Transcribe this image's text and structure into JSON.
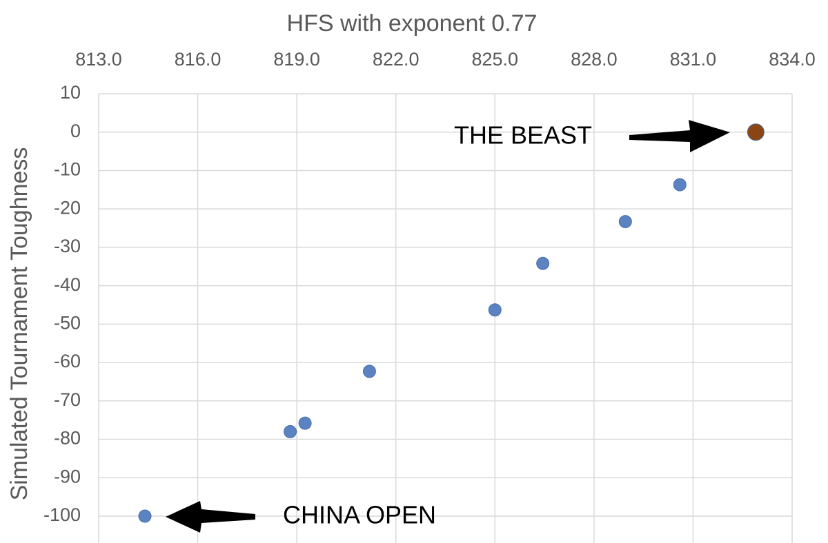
{
  "chart_data": {
    "type": "scatter",
    "x_label": "HFS with exponent 0.77",
    "y_label": "Simulated Tournament Toughness",
    "x": [
      814.4,
      818.8,
      819.25,
      821.2,
      825.0,
      826.45,
      828.95,
      830.6,
      832.9
    ],
    "values": [
      -100,
      -78,
      -75.8,
      -62.3,
      -46.3,
      -34.2,
      -23.3,
      -13.7,
      0
    ],
    "point_colors": [
      "#5b82c1",
      "#5b82c1",
      "#5b82c1",
      "#5b82c1",
      "#5b82c1",
      "#5b82c1",
      "#5b82c1",
      "#5b82c1",
      "#8b4513"
    ],
    "point_sizes": [
      9,
      9,
      9,
      9,
      9,
      9,
      9,
      9,
      12
    ],
    "xlim": [
      813,
      834
    ],
    "xticks": [
      {
        "value": 813,
        "label": "813.0"
      },
      {
        "value": 816,
        "label": "816.0"
      },
      {
        "value": 819,
        "label": "819.0"
      },
      {
        "value": 822,
        "label": "822.0"
      },
      {
        "value": 825,
        "label": "825.0"
      },
      {
        "value": 828,
        "label": "828.0"
      },
      {
        "value": 831,
        "label": "831.0"
      },
      {
        "value": 834,
        "label": "834.0"
      }
    ],
    "x_axis_position": "top",
    "ylim": [
      -107,
      10
    ],
    "yticks": [
      10,
      0,
      -10,
      -20,
      -30,
      -40,
      -50,
      -60,
      -70,
      -80,
      -90,
      -100
    ],
    "grid": true,
    "annotations": [
      "THE BEAST",
      "CHINA OPEN"
    ]
  }
}
